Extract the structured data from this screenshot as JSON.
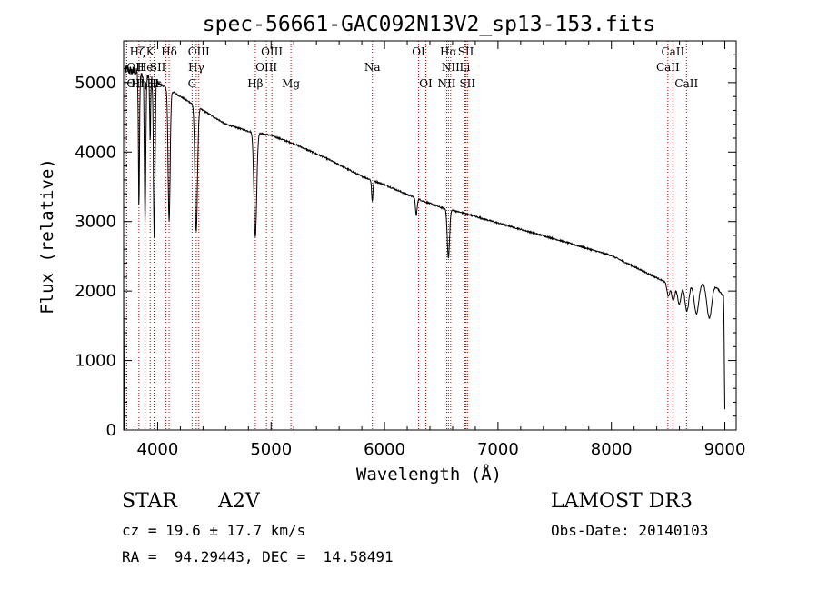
{
  "chart_data": {
    "type": "line",
    "title": "spec-56661-GAC092N13V2_sp13-153.fits",
    "xlabel": "Wavelength (Å)",
    "ylabel": "Flux (relative)",
    "xlim": [
      3700,
      9100
    ],
    "ylim": [
      0,
      5600
    ],
    "xticks": [
      4000,
      5000,
      6000,
      7000,
      8000,
      9000
    ],
    "yticks": [
      0,
      1000,
      2000,
      3000,
      4000,
      5000
    ],
    "grid": false,
    "continuum": [
      [
        3700,
        5200
      ],
      [
        3800,
        5150
      ],
      [
        3900,
        5080
      ],
      [
        4000,
        5000
      ],
      [
        4200,
        4800
      ],
      [
        4400,
        4600
      ],
      [
        4600,
        4400
      ],
      [
        4800,
        4300
      ],
      [
        5000,
        4240
      ],
      [
        5200,
        4120
      ],
      [
        5500,
        3900
      ],
      [
        5800,
        3650
      ],
      [
        6000,
        3530
      ],
      [
        6300,
        3320
      ],
      [
        6500,
        3200
      ],
      [
        6700,
        3120
      ],
      [
        7000,
        2980
      ],
      [
        7500,
        2750
      ],
      [
        8000,
        2510
      ],
      [
        8500,
        2110
      ],
      [
        8800,
        2120
      ],
      [
        8900,
        2110
      ],
      [
        9000,
        1900
      ]
    ],
    "absorption_features": [
      {
        "wavelength": 3835,
        "depth": 1900,
        "width": 5
      },
      {
        "wavelength": 3889,
        "depth": 2100,
        "width": 6
      },
      {
        "wavelength": 3934,
        "depth": 900,
        "width": 4
      },
      {
        "wavelength": 3970,
        "depth": 2300,
        "width": 7
      },
      {
        "wavelength": 4101,
        "depth": 1900,
        "width": 9
      },
      {
        "wavelength": 4340,
        "depth": 1800,
        "width": 11
      },
      {
        "wavelength": 4861,
        "depth": 1500,
        "width": 12
      },
      {
        "wavelength": 5892,
        "depth": 300,
        "width": 6
      },
      {
        "wavelength": 6280,
        "depth": 250,
        "width": 7
      },
      {
        "wavelength": 6563,
        "depth": 700,
        "width": 10
      },
      {
        "wavelength": 8502,
        "depth": 180,
        "width": 12
      },
      {
        "wavelength": 8545,
        "depth": 250,
        "width": 14
      },
      {
        "wavelength": 8598,
        "depth": 300,
        "width": 16
      },
      {
        "wavelength": 8665,
        "depth": 400,
        "width": 18
      },
      {
        "wavelength": 8750,
        "depth": 450,
        "width": 20
      },
      {
        "wavelength": 8863,
        "depth": 500,
        "width": 22
      }
    ],
    "line_markers": [
      {
        "label": "Hζ",
        "wavelength": 3889,
        "row": 1,
        "align": "right"
      },
      {
        "label": "K",
        "wavelength": 3934,
        "row": 1,
        "align": "center"
      },
      {
        "label": "Hδ",
        "wavelength": 4101,
        "row": 1,
        "align": "center"
      },
      {
        "label": "OIII",
        "wavelength": 4363,
        "row": 1,
        "align": "center"
      },
      {
        "label": "OIII",
        "wavelength": 5007,
        "row": 1,
        "align": "center"
      },
      {
        "label": "OI",
        "wavelength": 6300,
        "row": 1,
        "align": "center"
      },
      {
        "label": "Hα",
        "wavelength": 6563,
        "row": 1,
        "align": "center"
      },
      {
        "label": "SII",
        "wavelength": 6717,
        "row": 1,
        "align": "center"
      },
      {
        "label": "CaII",
        "wavelength": 8542,
        "row": 1,
        "align": "center"
      },
      {
        "label": "OII",
        "wavelength": 3727,
        "row": 2,
        "align": "left"
      },
      {
        "label": "He",
        "wavelength": 3889,
        "row": 2,
        "align": "center"
      },
      {
        "label": "SII",
        "wavelength": 4072,
        "row": 2,
        "align": "right"
      },
      {
        "label": "Hγ",
        "wavelength": 4340,
        "row": 2,
        "align": "center"
      },
      {
        "label": "OIII",
        "wavelength": 4959,
        "row": 2,
        "align": "center"
      },
      {
        "label": "Na",
        "wavelength": 5893,
        "row": 2,
        "align": "center"
      },
      {
        "label": "NII",
        "wavelength": 6583,
        "row": 2,
        "align": "center"
      },
      {
        "label": "Li",
        "wavelength": 6708,
        "row": 2,
        "align": "center"
      },
      {
        "label": "CaII",
        "wavelength": 8498,
        "row": 2,
        "align": "center"
      },
      {
        "label": "OII",
        "wavelength": 3727,
        "row": 3,
        "align": "left"
      },
      {
        "label": "Hη",
        "wavelength": 3835,
        "row": 3,
        "align": "center"
      },
      {
        "label": "H",
        "wavelength": 3968,
        "row": 3,
        "align": "center"
      },
      {
        "label": "Hε",
        "wavelength": 3970,
        "row": 3,
        "align": "center"
      },
      {
        "label": "G",
        "wavelength": 4304,
        "row": 3,
        "align": "center"
      },
      {
        "label": "Hβ",
        "wavelength": 4861,
        "row": 3,
        "align": "center"
      },
      {
        "label": "Mg",
        "wavelength": 5175,
        "row": 3,
        "align": "center"
      },
      {
        "label": "OI",
        "wavelength": 6364,
        "row": 3,
        "align": "center"
      },
      {
        "label": "NII",
        "wavelength": 6548,
        "row": 3,
        "align": "center"
      },
      {
        "label": "SII",
        "wavelength": 6731,
        "row": 3,
        "align": "center"
      },
      {
        "label": "CaII",
        "wavelength": 8662,
        "row": 3,
        "align": "center"
      }
    ],
    "marker_line_color": "#cc0000",
    "spectrum_color": "#000000"
  },
  "info": {
    "object_class": "STAR",
    "subclass": "A2V",
    "survey": "LAMOST DR3",
    "cz": "cz = 19.6 ± 17.7 km/s",
    "obs_date": "Obs-Date: 20140103",
    "coords": "RA =  94.29443, DEC =  14.58491"
  }
}
